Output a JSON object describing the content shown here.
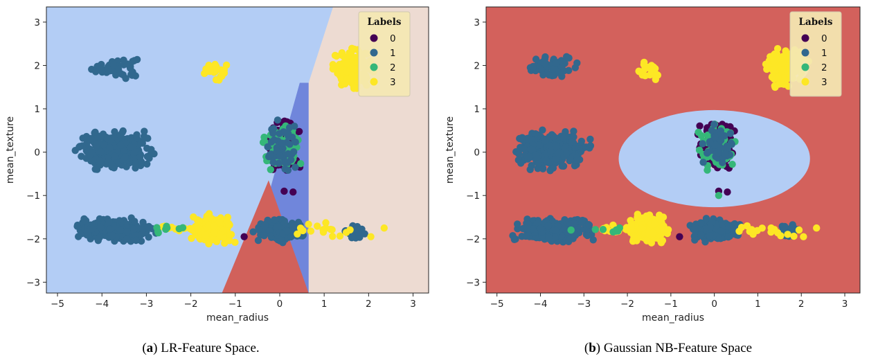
{
  "chart_data": [
    {
      "id": "a",
      "type": "scatter",
      "subtitle": "LR-Feature Space.",
      "caption_letter": "a",
      "xlabel": "mean_radius",
      "ylabel": "mean_texture",
      "xlim": [
        -5.25,
        3.35
      ],
      "ylim": [
        -3.25,
        3.35
      ],
      "xticks": [
        -5,
        -4,
        -3,
        -2,
        -1,
        0,
        1,
        2,
        3
      ],
      "yticks": [
        -3,
        -2,
        -1,
        0,
        1,
        2,
        3
      ],
      "xtick_labels": [
        "−5",
        "−4",
        "−3",
        "−2",
        "−1",
        "0",
        "1",
        "2",
        "3"
      ],
      "ytick_labels": [
        "−3",
        "−2",
        "−1",
        "0",
        "1",
        "2",
        "3"
      ],
      "legend_title": "Labels",
      "legend_position": "top-right",
      "background_color": "#b3cdf5",
      "decision_regions": [
        {
          "label": "3",
          "color": "#eddbd2",
          "polygon": [
            [
              1.2,
              3.35
            ],
            [
              3.35,
              3.35
            ],
            [
              3.35,
              -3.25
            ],
            [
              0.65,
              -3.25
            ],
            [
              0.65,
              1.6
            ]
          ]
        },
        {
          "label": "1",
          "color": "#7086db",
          "polygon": [
            [
              0.45,
              1.6
            ],
            [
              0.65,
              1.6
            ],
            [
              0.65,
              -3.25
            ],
            [
              0.35,
              -3.25
            ],
            [
              -0.2,
              -0.8
            ]
          ]
        },
        {
          "label": "0",
          "color": "#d1615b",
          "polygon": [
            [
              -0.25,
              -0.65
            ],
            [
              0.65,
              -3.25
            ],
            [
              -1.3,
              -3.25
            ]
          ]
        }
      ],
      "clusters": [
        {
          "label": "1",
          "center": [
            -3.7,
            1.95
          ],
          "spread": [
            0.25,
            0.12
          ],
          "n": 55
        },
        {
          "label": "3",
          "center": [
            -1.45,
            1.88
          ],
          "spread": [
            0.12,
            0.1
          ],
          "n": 25
        },
        {
          "label": "3",
          "center": [
            1.65,
            1.93
          ],
          "spread": [
            0.22,
            0.2
          ],
          "n": 140
        },
        {
          "label": "1",
          "center": [
            -3.7,
            0.05
          ],
          "spread": [
            0.38,
            0.2
          ],
          "n": 320
        },
        {
          "label": "1",
          "center": [
            -3.7,
            -1.8
          ],
          "spread": [
            0.4,
            0.12
          ],
          "n": 280
        },
        {
          "label": "3",
          "center": [
            -1.5,
            -1.78
          ],
          "spread": [
            0.22,
            0.15
          ],
          "n": 160
        },
        {
          "label": "1",
          "center": [
            0.0,
            -1.8
          ],
          "spread": [
            0.25,
            0.12
          ],
          "n": 170
        },
        {
          "label": "1",
          "center": [
            1.7,
            -1.8
          ],
          "spread": [
            0.1,
            0.08
          ],
          "n": 25
        },
        {
          "label": "0",
          "center": [
            0.05,
            0.15
          ],
          "spread": [
            0.18,
            0.25
          ],
          "n": 160
        },
        {
          "label": "2",
          "center": [
            0.05,
            0.15
          ],
          "spread": [
            0.18,
            0.25
          ],
          "n": 90
        },
        {
          "label": "1",
          "center": [
            0.05,
            0.15
          ],
          "spread": [
            0.18,
            0.25
          ],
          "n": 50
        },
        {
          "label": "3",
          "center": [
            -2.3,
            -1.78
          ],
          "spread": [
            0.3,
            0.05
          ],
          "n": 14
        },
        {
          "label": "3",
          "center": [
            1.0,
            -1.8
          ],
          "spread": [
            0.4,
            0.08
          ],
          "n": 16
        },
        {
          "label": "2",
          "center": [
            -2.5,
            -1.78
          ],
          "spread": [
            0.4,
            0.05
          ],
          "n": 8
        }
      ],
      "extra_points": [
        {
          "label": "0",
          "x": -0.8,
          "y": -1.95
        },
        {
          "label": "0",
          "x": 0.3,
          "y": -0.92
        },
        {
          "label": "0",
          "x": 0.1,
          "y": -0.9
        },
        {
          "label": "3",
          "x": 2.05,
          "y": -1.95
        },
        {
          "label": "3",
          "x": 2.35,
          "y": -1.75
        }
      ]
    },
    {
      "id": "b",
      "type": "scatter",
      "subtitle": "Gaussian NB-Feature Space",
      "caption_letter": "b",
      "xlabel": "mean_radius",
      "ylabel": "mean_texture",
      "xlim": [
        -5.25,
        3.35
      ],
      "ylim": [
        -3.25,
        3.35
      ],
      "xticks": [
        -5,
        -4,
        -3,
        -2,
        -1,
        0,
        1,
        2,
        3
      ],
      "yticks": [
        -3,
        -2,
        -1,
        0,
        1,
        2,
        3
      ],
      "xtick_labels": [
        "−5",
        "−4",
        "−3",
        "−2",
        "−1",
        "0",
        "1",
        "2",
        "3"
      ],
      "ytick_labels": [
        "−3",
        "−2",
        "−1",
        "0",
        "1",
        "2",
        "3"
      ],
      "legend_title": "Labels",
      "legend_position": "top-right",
      "background_color": "#d3615c",
      "decision_regions": [
        {
          "label": "1",
          "color": "#b3cdf5",
          "ellipse": {
            "cx": 0.0,
            "cy": -0.15,
            "rx": 2.2,
            "ry": 1.12
          }
        },
        {
          "label": "2",
          "color": "#eddbd2",
          "ellipse": {
            "cx": 0.05,
            "cy": 0.15,
            "rx": 0.35,
            "ry": 0.55
          }
        },
        {
          "label": "3",
          "color": "#f4ead0",
          "ellipse": {
            "cx": 1.75,
            "cy": 1.93,
            "rx": 0.42,
            "ry": 0.3
          }
        }
      ],
      "clusters": [
        {
          "label": "1",
          "center": [
            -3.7,
            1.95
          ],
          "spread": [
            0.25,
            0.12
          ],
          "n": 55
        },
        {
          "label": "3",
          "center": [
            -1.45,
            1.88
          ],
          "spread": [
            0.12,
            0.1
          ],
          "n": 25
        },
        {
          "label": "3",
          "center": [
            1.65,
            1.93
          ],
          "spread": [
            0.22,
            0.2
          ],
          "n": 140
        },
        {
          "label": "1",
          "center": [
            -3.7,
            0.05
          ],
          "spread": [
            0.38,
            0.2
          ],
          "n": 320
        },
        {
          "label": "1",
          "center": [
            -3.7,
            -1.8
          ],
          "spread": [
            0.4,
            0.12
          ],
          "n": 280
        },
        {
          "label": "3",
          "center": [
            -1.5,
            -1.78
          ],
          "spread": [
            0.22,
            0.15
          ],
          "n": 160
        },
        {
          "label": "1",
          "center": [
            0.0,
            -1.8
          ],
          "spread": [
            0.25,
            0.12
          ],
          "n": 170
        },
        {
          "label": "1",
          "center": [
            1.7,
            -1.8
          ],
          "spread": [
            0.1,
            0.08
          ],
          "n": 25
        },
        {
          "label": "0",
          "center": [
            0.05,
            0.15
          ],
          "spread": [
            0.18,
            0.25
          ],
          "n": 160
        },
        {
          "label": "2",
          "center": [
            0.05,
            0.15
          ],
          "spread": [
            0.18,
            0.25
          ],
          "n": 90
        },
        {
          "label": "1",
          "center": [
            0.05,
            0.15
          ],
          "spread": [
            0.18,
            0.25
          ],
          "n": 50
        },
        {
          "label": "3",
          "center": [
            -2.3,
            -1.78
          ],
          "spread": [
            0.3,
            0.05
          ],
          "n": 14
        },
        {
          "label": "3",
          "center": [
            1.0,
            -1.8
          ],
          "spread": [
            0.4,
            0.08
          ],
          "n": 16
        },
        {
          "label": "2",
          "center": [
            -2.5,
            -1.78
          ],
          "spread": [
            0.4,
            0.05
          ],
          "n": 8
        }
      ],
      "extra_points": [
        {
          "label": "0",
          "x": -0.8,
          "y": -1.95
        },
        {
          "label": "0",
          "x": 0.3,
          "y": -0.92
        },
        {
          "label": "0",
          "x": 0.1,
          "y": -0.9
        },
        {
          "label": "2",
          "x": 0.1,
          "y": -1.0
        },
        {
          "label": "3",
          "x": 2.05,
          "y": -1.95
        },
        {
          "label": "3",
          "x": 2.35,
          "y": -1.75
        }
      ]
    }
  ],
  "legend": {
    "title": "Labels",
    "entries": [
      {
        "label": "0",
        "color": "#440154"
      },
      {
        "label": "1",
        "color": "#31688e"
      },
      {
        "label": "2",
        "color": "#35b779"
      },
      {
        "label": "3",
        "color": "#fde725"
      }
    ]
  }
}
